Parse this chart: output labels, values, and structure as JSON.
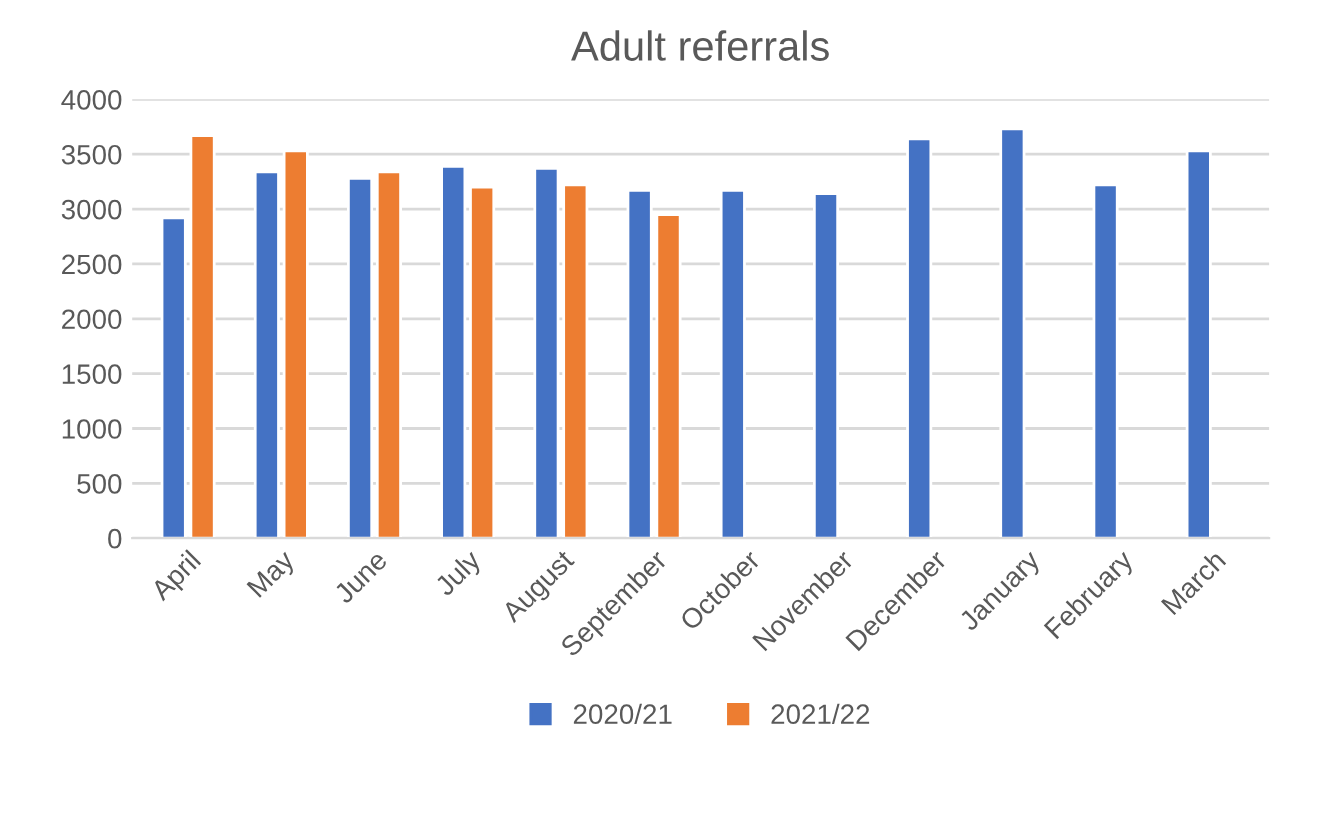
{
  "chart_data": {
    "type": "bar",
    "title": "Adult referrals",
    "categories": [
      "April",
      "May",
      "June",
      "July",
      "August",
      "September",
      "October",
      "November",
      "December",
      "January",
      "February",
      "March"
    ],
    "series": [
      {
        "name": "2020/21",
        "color": "#4472c4",
        "values": [
          2920,
          3340,
          3280,
          3390,
          3370,
          3170,
          3170,
          3140,
          3640,
          3730,
          3220,
          3530
        ]
      },
      {
        "name": "2021/22",
        "color": "#ed7d31",
        "values": [
          3670,
          3530,
          3340,
          3200,
          3220,
          2950,
          null,
          null,
          null,
          null,
          null,
          null
        ]
      }
    ],
    "ylim": [
      0,
      4000
    ],
    "yticks": [
      0,
      500,
      1000,
      1500,
      2000,
      2500,
      3000,
      3500,
      4000
    ],
    "grid": "y",
    "legend": "bottom"
  }
}
